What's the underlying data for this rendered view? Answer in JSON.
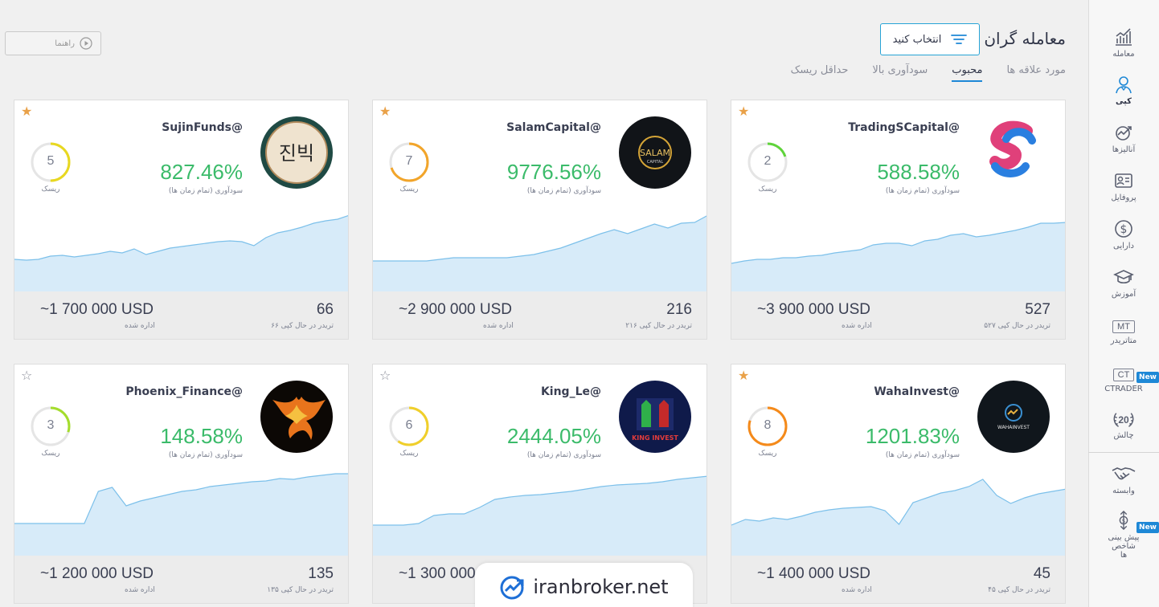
{
  "header": {
    "title": "معامله گران",
    "select_button": "انتخاب کنید",
    "help_button": "راهنما"
  },
  "tabs": [
    {
      "label": "مورد علاقه ها",
      "active": false
    },
    {
      "label": "محبوب",
      "active": true
    },
    {
      "label": "سودآوری بالا",
      "active": false
    },
    {
      "label": "حداقل ریسک",
      "active": false
    }
  ],
  "sidebar": {
    "items": [
      {
        "label": "معامله",
        "icon": "trade-chart-icon"
      },
      {
        "label": "کپی",
        "icon": "copy-person-icon",
        "active": true
      },
      {
        "label": "آنالیزها",
        "icon": "analysis-icon"
      },
      {
        "label": "پروفایل",
        "icon": "profile-card-icon"
      },
      {
        "label": "دارایی",
        "icon": "dollar-icon"
      },
      {
        "label": "آموزش",
        "icon": "graduation-cap-icon"
      },
      {
        "label": "متاتریدر",
        "icon": "mt-icon",
        "box_text": "MT"
      },
      {
        "label": "CTRADER",
        "icon": "ct-icon",
        "box_text": "CT",
        "badge": "New"
      },
      {
        "label": "چالش",
        "icon": "laurel-20-icon",
        "box_text": "20"
      },
      {
        "label": "وابسته",
        "icon": "handshake-icon"
      },
      {
        "label": "پیش بینی شاخص ها",
        "icon": "forecast-icon",
        "badge": "New"
      }
    ]
  },
  "card_labels": {
    "profit_label": "سودآوری (تمام زمان ها)",
    "risk_label": "ریسک",
    "aum_label": "اداره شده"
  },
  "colors": {
    "accent": "#1e88d6",
    "profit_green": "#3bbb6a",
    "star_gold": "#e9a148",
    "chart_fill": "#d7ebf9",
    "chart_line": "#7cc0ea"
  },
  "traders": [
    {
      "name": "TradingSCapital@",
      "profit": "588.58%",
      "risk": "2",
      "risk_color": "#5fd43a",
      "copiers": "527",
      "copiers_label": "۵۲۷ تریدر در حال کپی",
      "aum": "~3 900 000 USD",
      "favorite": true,
      "avatar": "tradings-logo",
      "equity": [
        35,
        38,
        40,
        40,
        42,
        42,
        44,
        45,
        48,
        50,
        52,
        58,
        60,
        60,
        57,
        63,
        65,
        70,
        72,
        68,
        70,
        73,
        76,
        80,
        85,
        85,
        86
      ]
    },
    {
      "name": "SalamCapital@",
      "profit": "9776.56%",
      "risk": "7",
      "risk_color": "#f2a52a",
      "copiers": "216",
      "copiers_label": "۲۱۶ تریدر در حال کپی",
      "aum": "~2 900 000 USD",
      "favorite": true,
      "avatar": "salam-capital-logo",
      "avatar_text": "SALAM",
      "equity": [
        38,
        38,
        38,
        38,
        38,
        40,
        42,
        42,
        42,
        42,
        42,
        44,
        46,
        50,
        54,
        60,
        66,
        72,
        77,
        72,
        78,
        84,
        79,
        85,
        86,
        95
      ]
    },
    {
      "name": "SujinFunds@",
      "profit": "827.46%",
      "risk": "5",
      "risk_color": "#e8d820",
      "copiers": "66",
      "copiers_label": "۶۶ تریدر در حال کپی",
      "aum": "~1 700 000 USD",
      "favorite": true,
      "avatar": "sujin-funds-logo",
      "avatar_text": "진빅",
      "equity": [
        40,
        39,
        40,
        44,
        45,
        43,
        45,
        47,
        50,
        48,
        53,
        46,
        50,
        54,
        56,
        58,
        60,
        62,
        63,
        62,
        57,
        67,
        73,
        76,
        80,
        85,
        88,
        90,
        95
      ]
    },
    {
      "name": "WahaInvest@",
      "profit": "1201.83%",
      "risk": "8",
      "risk_color": "#f58a1a",
      "copiers": "45",
      "copiers_label": "۴۵ تریدر در حال کپی",
      "aum": "~1 400 000 USD",
      "favorite": true,
      "avatar": "waha-invest-logo",
      "avatar_text": "WAHAINVEST",
      "equity": [
        38,
        45,
        43,
        47,
        45,
        49,
        54,
        57,
        59,
        60,
        61,
        56,
        39,
        66,
        72,
        78,
        81,
        86,
        95,
        75,
        65,
        72,
        77,
        80,
        83
      ]
    },
    {
      "name": "King_Le@",
      "profit": "2444.05%",
      "risk": "6",
      "risk_color": "#f0cf2a",
      "copiers": "",
      "copiers_label": "",
      "aum": "~1 300 000 USD",
      "favorite": false,
      "avatar": "king-invest-logo",
      "avatar_text": "KING INVEST",
      "equity": [
        38,
        38,
        38,
        40,
        50,
        52,
        52,
        60,
        70,
        73,
        75,
        76,
        78,
        80,
        83,
        86,
        88,
        89,
        90,
        92,
        95,
        97,
        99
      ]
    },
    {
      "name": "Phoenix_Finance@",
      "profit": "148.58%",
      "risk": "3",
      "risk_color": "#a4dd2c",
      "copiers": "135",
      "copiers_label": "۱۳۵ تریدر در حال کپی",
      "aum": "~1 200 000 USD",
      "favorite": false,
      "avatar": "phoenix-finance-logo",
      "equity": [
        40,
        40,
        40,
        40,
        40,
        40,
        80,
        85,
        62,
        68,
        72,
        76,
        80,
        82,
        86,
        88,
        90,
        92,
        93,
        96,
        95,
        98,
        100,
        102,
        102
      ]
    }
  ],
  "watermark": {
    "text": "iranbroker.net"
  }
}
